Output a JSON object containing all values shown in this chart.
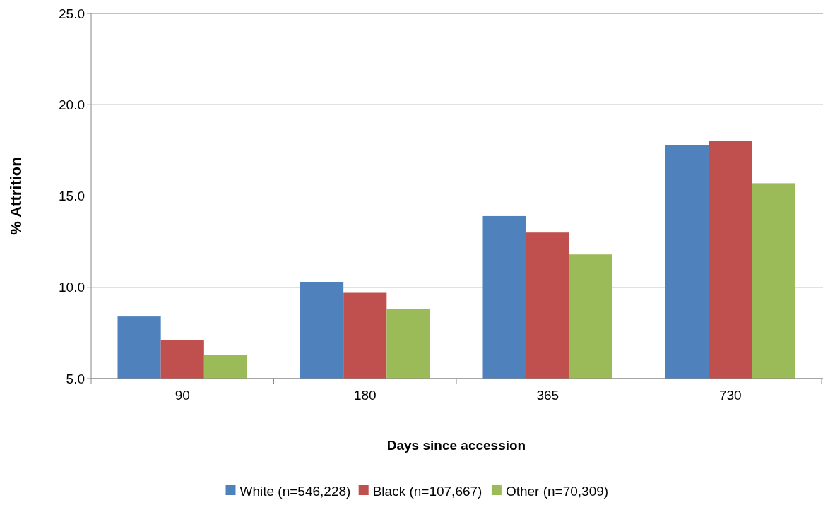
{
  "chart_data": {
    "type": "bar",
    "xlabel": "Days since accession",
    "ylabel": "% Attrition",
    "categories": [
      "90",
      "180",
      "365",
      "730"
    ],
    "series": [
      {
        "name": "White (n=546,228)",
        "color": "#4f81bd",
        "values": [
          8.4,
          10.3,
          13.9,
          17.8
        ]
      },
      {
        "name": "Black (n=107,667)",
        "color": "#c0504d",
        "values": [
          7.1,
          9.7,
          13.0,
          18.0
        ]
      },
      {
        "name": "Other (n=70,309)",
        "color": "#9bbb59",
        "values": [
          6.3,
          8.8,
          11.8,
          15.7
        ]
      }
    ],
    "ylim": [
      5,
      25
    ],
    "yticks": [
      {
        "value": 5,
        "label": "5.0"
      },
      {
        "value": 10,
        "label": "10.0"
      },
      {
        "value": 15,
        "label": "15.0"
      },
      {
        "value": 20,
        "label": "20.0"
      },
      {
        "value": 25,
        "label": "25.0"
      }
    ],
    "grid": "y",
    "legend": "bottom"
  }
}
